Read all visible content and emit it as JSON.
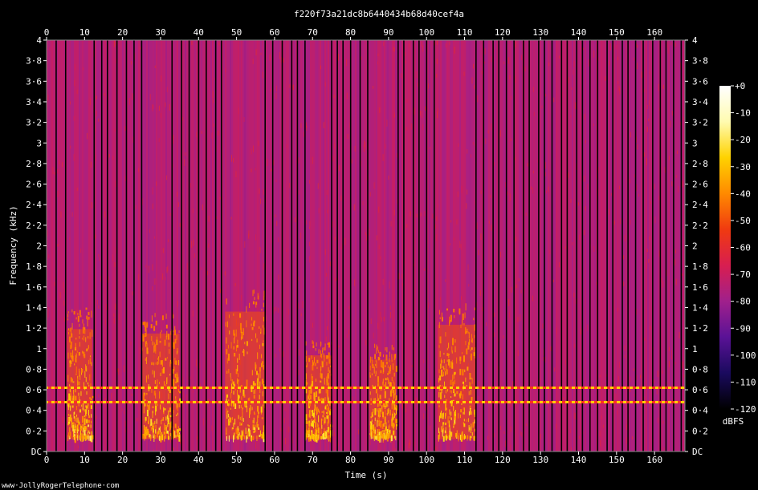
{
  "chart_data": {
    "type": "heatmap",
    "title": "f220f73a21dc8b6440434b68d40cef4a",
    "xlabel": "Time (s)",
    "ylabel": "Frequency (kHz)",
    "xlim": [
      0,
      168
    ],
    "ylim": [
      0,
      4
    ],
    "x_ticks": [
      "0",
      "10",
      "20",
      "30",
      "40",
      "50",
      "60",
      "70",
      "80",
      "90",
      "100",
      "110",
      "120",
      "130",
      "140",
      "150",
      "160"
    ],
    "x_tick_values": [
      0,
      10,
      20,
      30,
      40,
      50,
      60,
      70,
      80,
      90,
      100,
      110,
      120,
      130,
      140,
      150,
      160
    ],
    "y_ticks": [
      "DC",
      "0·2",
      "0·4",
      "0·6",
      "0·8",
      "1",
      "1·2",
      "1·4",
      "1·6",
      "1·8",
      "2",
      "2·2",
      "2·4",
      "2·6",
      "2·8",
      "3",
      "3·2",
      "3·4",
      "3·6",
      "3·8",
      "4"
    ],
    "y_tick_values": [
      0,
      0.2,
      0.4,
      0.6,
      0.8,
      1,
      1.2,
      1.4,
      1.6,
      1.8,
      2,
      2.2,
      2.4,
      2.6,
      2.8,
      3,
      3.2,
      3.4,
      3.6,
      3.8,
      4
    ],
    "colorbar": {
      "label": "dBFS",
      "ticks": [
        "+0",
        "-10",
        "-20",
        "-30",
        "-40",
        "-50",
        "-60",
        "-70",
        "-80",
        "-90",
        "-100",
        "-110",
        "-120"
      ],
      "tick_values": [
        0,
        -10,
        -20,
        -30,
        -40,
        -50,
        -60,
        -70,
        -80,
        -90,
        -100,
        -110,
        -120
      ],
      "range": [
        -120,
        0
      ],
      "colors": [
        "#000000",
        "#1a0a5e",
        "#5a1296",
        "#a0208c",
        "#d81e50",
        "#f03a10",
        "#ff8a00",
        "#ffd200",
        "#fffbb0",
        "#ffffff"
      ]
    },
    "background_level_db": -75,
    "tone_lines": [
      {
        "frequency_khz": 0.62,
        "level_db": -30,
        "dashed": true
      },
      {
        "frequency_khz": 0.48,
        "level_db": -32,
        "dashed": true
      }
    ],
    "bursts": [
      {
        "start_s": 5.5,
        "end_s": 12,
        "max_freq_khz": 1.4
      },
      {
        "start_s": 25,
        "end_s": 35,
        "max_freq_khz": 1.35
      },
      {
        "start_s": 47,
        "end_s": 57.5,
        "max_freq_khz": 1.6
      },
      {
        "start_s": 68,
        "end_s": 75,
        "max_freq_khz": 1.1
      },
      {
        "start_s": 85,
        "end_s": 92,
        "max_freq_khz": 1.05
      },
      {
        "start_s": 103,
        "end_s": 113,
        "max_freq_khz": 1.45
      }
    ],
    "dropout_times_s": [
      2.5,
      5,
      12.5,
      14.5,
      16,
      18.5,
      21,
      23,
      25,
      33,
      35.5,
      37.5,
      40,
      42,
      44.5,
      46,
      57.5,
      59.5,
      62,
      64.5,
      66,
      68,
      75,
      76.5,
      78,
      80,
      82.5,
      84.5,
      92.5,
      94,
      96.5,
      98,
      100,
      102,
      113,
      115,
      117.5,
      119,
      121,
      123,
      125.5,
      127,
      129.5,
      131,
      133,
      135.5,
      137,
      139.5,
      141,
      143,
      145,
      147.5,
      149,
      151.5,
      153,
      155,
      157,
      159.5,
      161.5,
      163,
      165,
      167
    ]
  },
  "footer": {
    "credit": "www·JollyRogerTelephone·com"
  }
}
